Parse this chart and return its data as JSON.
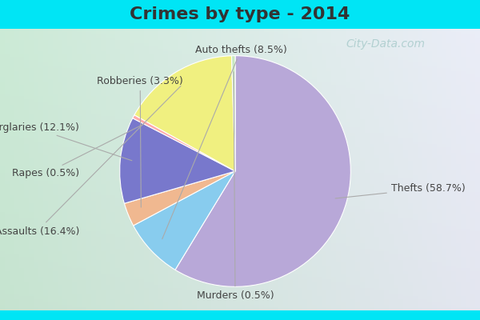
{
  "title": "Crimes by type - 2014",
  "title_color": "#333333",
  "title_fontsize": 16,
  "background_top": "#00e5f5",
  "background_bottom": "#00e5f5",
  "chart_bg_left": "#c8e8d0",
  "chart_bg_right": "#e8eef8",
  "pie_order": [
    "Thefts",
    "Auto thefts",
    "Robberies",
    "Burglaries",
    "Rapes",
    "Assaults",
    "Murders"
  ],
  "pie_values": [
    58.7,
    8.5,
    3.3,
    12.1,
    0.5,
    16.4,
    0.5
  ],
  "pie_colors": [
    "#b8a8d8",
    "#88ccee",
    "#f0b890",
    "#7878cc",
    "#ffaaaa",
    "#f0f080",
    "#c8e8c0"
  ],
  "label_fontsize": 9,
  "label_color": "#444444",
  "watermark": "City-Data.com",
  "watermark_color": "#aacccc",
  "watermark_fontsize": 10
}
